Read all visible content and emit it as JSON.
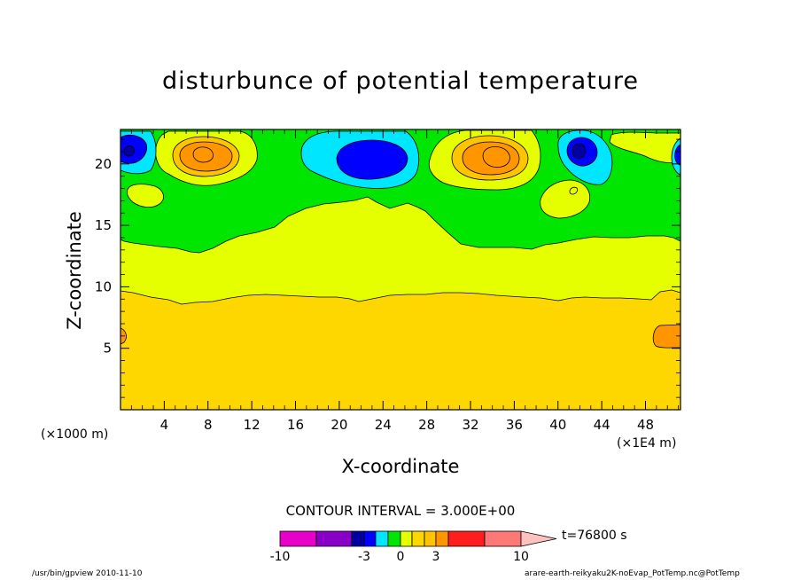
{
  "chart_data": {
    "type": "heatmap",
    "title": "disturbunce of potential temperature",
    "xlabel": "X-coordinate",
    "ylabel": "Z-coordinate",
    "x_unit_left": "(×1000 m)",
    "x_unit_right": "(×1E4 m)",
    "xlim": [
      0,
      51.2
    ],
    "ylim": [
      0,
      22.8
    ],
    "x_ticks": [
      4,
      8,
      12,
      16,
      20,
      24,
      28,
      32,
      36,
      40,
      44,
      48
    ],
    "y_ticks": [
      5,
      10,
      15,
      20
    ],
    "contour_interval": "CONTOUR INTERVAL = 3.000E+00",
    "time": "t=76800 s",
    "colorbar": {
      "labels": [
        "-10",
        "-3",
        "0",
        "3",
        "10"
      ],
      "label_values": [
        -10,
        -3,
        0,
        3,
        10
      ],
      "bins": [
        {
          "from": -10,
          "to": -7,
          "color": "#e600c8"
        },
        {
          "from": -7,
          "to": -4,
          "color": "#8800c8"
        },
        {
          "from": -4,
          "to": -3,
          "color": "#0000a0"
        },
        {
          "from": -3,
          "to": -2,
          "color": "#0000ff"
        },
        {
          "from": -2,
          "to": -1,
          "color": "#00e6ff"
        },
        {
          "from": -1,
          "to": 0,
          "color": "#00e600"
        },
        {
          "from": 0,
          "to": 1,
          "color": "#e6ff00"
        },
        {
          "from": 1,
          "to": 2,
          "color": "#ffd700"
        },
        {
          "from": 2,
          "to": 3,
          "color": "#ffc400"
        },
        {
          "from": 3,
          "to": 4,
          "color": "#ff9600"
        },
        {
          "from": 4,
          "to": 7,
          "color": "#ff1e1e"
        },
        {
          "from": 7,
          "to": 10,
          "color": "#ff7878"
        }
      ],
      "overflow_color": "#ffc0c0"
    },
    "regions": [
      {
        "name": "lower layer",
        "value": 1.5,
        "color": "#ffd700",
        "z_range": [
          0,
          9.5
        ]
      },
      {
        "name": "middle layer",
        "value": 0.5,
        "color": "#e6ff00",
        "z_range": [
          9.5,
          14.5
        ]
      },
      {
        "name": "upper layer",
        "value": -0.5,
        "color": "#00e600",
        "z_range": [
          14.5,
          22.8
        ]
      },
      {
        "name": "warm anomaly near x=7",
        "value": 4,
        "x": 7,
        "z": 20.8,
        "color": "#ff9600"
      },
      {
        "name": "warm anomaly near x=34",
        "value": 4,
        "x": 34,
        "z": 20.8,
        "color": "#ff9600"
      },
      {
        "name": "cold anomaly near x=21",
        "value": -2.5,
        "x": 21,
        "z": 20.5,
        "color": "#0000ff"
      },
      {
        "name": "cold anomaly near x=41",
        "value": -3.5,
        "x": 41,
        "z": 21,
        "color": "#0000a0"
      },
      {
        "name": "cold anomaly near x=0",
        "value": -3.5,
        "x": 0.5,
        "z": 21,
        "color": "#0000a0"
      },
      {
        "name": "warm anomaly near x=50",
        "value": 3,
        "x": 50,
        "z": 6,
        "color": "#ff9600"
      }
    ]
  },
  "footer": {
    "left": "/usr/bin/gpview   2010-11-10",
    "right": "arare-earth-reikyaku2K-noEvap_PotTemp.nc@PotTemp"
  }
}
